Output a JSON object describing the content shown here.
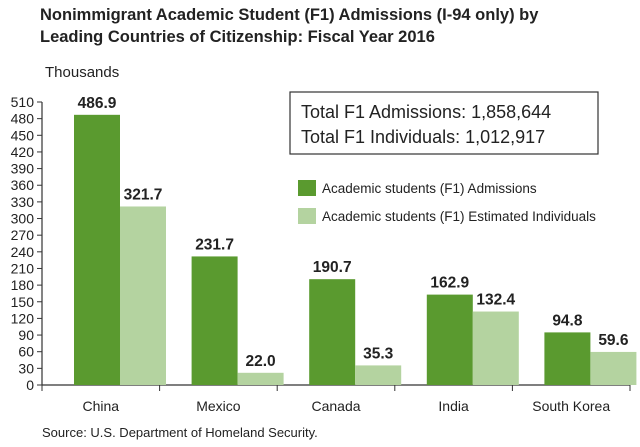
{
  "title_line1": "Nonimmigrant Academic Student (F1) Admissions (I-94 only) by",
  "title_line2": "Leading Countries of Citizenship: Fiscal Year 2016",
  "unit_label": "Thousands",
  "summary": {
    "admissions": "Total F1 Admissions: 1,858,644",
    "individuals": "Total F1 Individuals: 1,012,917"
  },
  "source": "Source: U.S. Department of Homeland Security.",
  "colors": {
    "admissions": "#5a9a2f",
    "individuals": "#b4d3a0"
  },
  "chart_data": {
    "type": "bar",
    "categories": [
      "China",
      "Mexico",
      "Canada",
      "India",
      "South Korea"
    ],
    "series": [
      {
        "name": "Academic students (F1) Admissions",
        "values": [
          486.9,
          231.7,
          190.7,
          162.9,
          94.8
        ]
      },
      {
        "name": "Academic students (F1) Estimated Individuals",
        "values": [
          321.7,
          22.0,
          35.3,
          132.4,
          59.6
        ]
      }
    ],
    "value_labels": [
      [
        "486.9",
        "231.7",
        "190.7",
        "162.9",
        "94.8"
      ],
      [
        "321.7",
        "22.0",
        "35.3",
        "132.4",
        "59.6"
      ]
    ],
    "yticks": [
      0,
      30,
      60,
      90,
      120,
      150,
      180,
      210,
      240,
      270,
      300,
      330,
      360,
      390,
      420,
      450,
      480,
      510
    ],
    "ylim": [
      0,
      510
    ],
    "ylabel": "Thousands",
    "legend_position": "right"
  }
}
